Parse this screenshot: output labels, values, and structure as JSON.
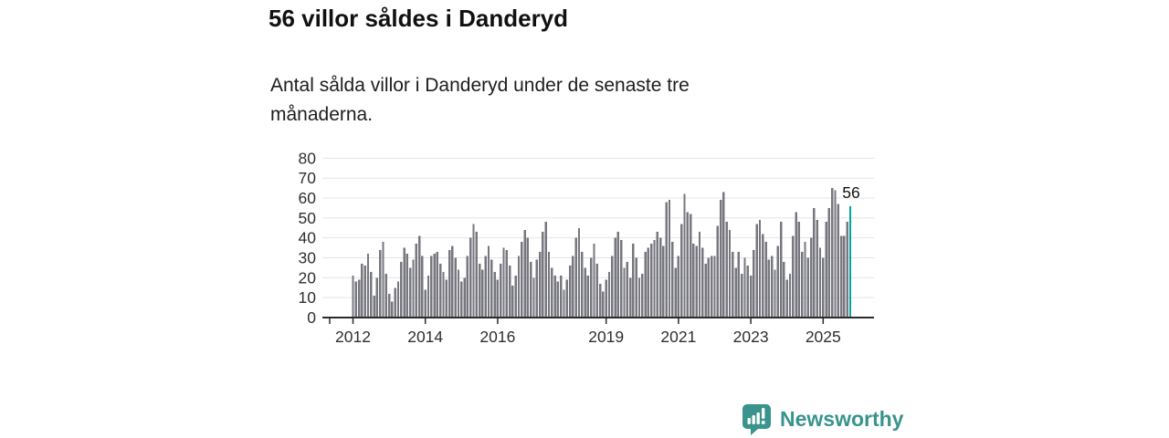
{
  "header": {
    "title": "56 villor såldes i Danderyd",
    "subtitle": "Antal sålda villor i Danderyd under de senaste tre månaderna."
  },
  "chart_data": {
    "type": "bar",
    "title": "56 villor såldes i Danderyd",
    "description": "Antal sålda villor i Danderyd under de senaste tre månaderna.",
    "x_start": "2012-01",
    "x_end": "2025-10",
    "frequency": "monthly",
    "values": [
      21,
      18,
      19,
      27,
      26,
      32,
      23,
      11,
      20,
      34,
      38,
      22,
      12,
      8,
      15,
      18,
      28,
      35,
      32,
      25,
      29,
      37,
      41,
      31,
      14,
      21,
      31,
      32,
      33,
      27,
      23,
      19,
      34,
      36,
      30,
      24,
      18,
      20,
      31,
      40,
      47,
      43,
      27,
      24,
      31,
      36,
      29,
      23,
      19,
      27,
      35,
      34,
      26,
      16,
      21,
      31,
      38,
      44,
      40,
      28,
      20,
      29,
      33,
      43,
      48,
      33,
      25,
      21,
      18,
      21,
      14,
      19,
      26,
      31,
      40,
      45,
      33,
      25,
      21,
      30,
      37,
      27,
      17,
      13,
      19,
      23,
      31,
      40,
      43,
      39,
      25,
      28,
      20,
      37,
      30,
      20,
      22,
      33,
      35,
      37,
      39,
      43,
      40,
      36,
      58,
      59,
      38,
      25,
      31,
      47,
      62,
      53,
      52,
      37,
      36,
      43,
      35,
      27,
      30,
      31,
      31,
      46,
      59,
      63,
      48,
      44,
      33,
      25,
      33,
      22,
      30,
      26,
      21,
      34,
      47,
      49,
      42,
      38,
      29,
      31,
      24,
      36,
      48,
      28,
      19,
      22,
      41,
      53,
      48,
      33,
      38,
      30,
      40,
      55,
      49,
      35,
      30,
      48,
      55,
      65,
      64,
      57,
      41,
      41,
      48,
      56
    ],
    "highlight_index": 165,
    "highlight_value_label": "56",
    "x_tick_years": [
      2012,
      2014,
      2016,
      2019,
      2021,
      2023,
      2025
    ],
    "y_ticks": [
      0,
      10,
      20,
      30,
      40,
      50,
      60,
      70,
      80
    ],
    "ylim": [
      0,
      80
    ],
    "grid": true,
    "legend": false,
    "bar_color": "#77777f",
    "highlight_color": "#00a5a2",
    "axis_color": "#2b2b2b",
    "gridline_color": "#e4e4e4",
    "label_color": "#2f2f2f",
    "annotation_color": "#111111"
  },
  "footer": {
    "brand": "Newsworthy",
    "brand_color": "#38948c",
    "logo_icon": "bar-chart-speech-bubble-icon"
  }
}
